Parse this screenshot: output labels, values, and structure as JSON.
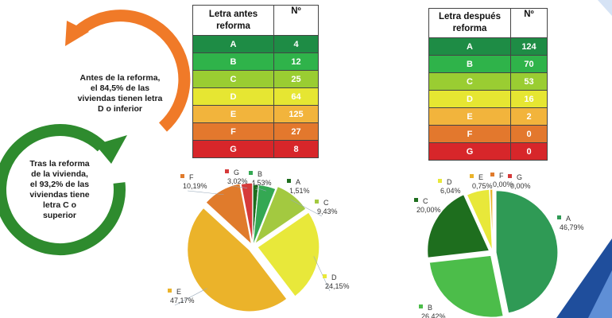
{
  "colors": {
    "A": "#1e8c45",
    "B": "#2fb34a",
    "C": "#9acd32",
    "D": "#e6e632",
    "E": "#f2b43c",
    "F": "#e3782d",
    "G": "#d7262a",
    "pieA": "#1e6e1e",
    "pieB": "#34a853",
    "pieC": "#a3c940",
    "pieD": "#e8e83a",
    "pieE": "#ebb32a",
    "pieF": "#e07b2c",
    "pieG": "#d63a3a",
    "arrowOrange": "#f07a28",
    "arrowGreen": "#2e8b2e",
    "cornerBlue": "#1f4e9c"
  },
  "callouts": {
    "before_lines": [
      "Antes de la reforma,",
      "el 84,5% de las",
      "viviendas tienen letra",
      "D o inferior"
    ],
    "after_lines": [
      "Tras la reforma",
      "de la vivienda,",
      "el 93,2% de las",
      "viviendas tiene",
      "letra C o",
      "superior"
    ]
  },
  "tables": {
    "before": {
      "header_letter_lines": [
        "Letra antes",
        "reforma"
      ],
      "header_count": "Nº",
      "rows": [
        {
          "letter": "A",
          "count": "4"
        },
        {
          "letter": "B",
          "count": "12"
        },
        {
          "letter": "C",
          "count": "25"
        },
        {
          "letter": "D",
          "count": "64"
        },
        {
          "letter": "E",
          "count": "125"
        },
        {
          "letter": "F",
          "count": "27"
        },
        {
          "letter": "G",
          "count": "8"
        }
      ]
    },
    "after": {
      "header_letter_lines": [
        "Letra después",
        "reforma"
      ],
      "header_count": "Nº",
      "rows": [
        {
          "letter": "A",
          "count": "124"
        },
        {
          "letter": "B",
          "count": "70"
        },
        {
          "letter": "C",
          "count": "53"
        },
        {
          "letter": "D",
          "count": "16"
        },
        {
          "letter": "E",
          "count": "2"
        },
        {
          "letter": "F",
          "count": "0"
        },
        {
          "letter": "G",
          "count": "0"
        }
      ]
    }
  },
  "chart_data": [
    {
      "type": "pie",
      "title": "",
      "labels": [
        "A",
        "B",
        "C",
        "D",
        "E",
        "F",
        "G"
      ],
      "values": [
        1.51,
        4.53,
        9.43,
        24.15,
        47.17,
        10.19,
        3.02
      ],
      "value_labels": [
        "1,51%",
        "4,53%",
        "9,43%",
        "24,15%",
        "47,17%",
        "10,19%",
        "3,02%"
      ],
      "colors": [
        "#1e6e1e",
        "#34a853",
        "#a3c940",
        "#e8e83a",
        "#ebb32a",
        "#e07b2c",
        "#d63a3a"
      ],
      "legend": "per-slice labels"
    },
    {
      "type": "pie",
      "title": "",
      "labels": [
        "A",
        "B",
        "C",
        "D",
        "E",
        "F",
        "G"
      ],
      "values": [
        46.79,
        26.42,
        20.0,
        6.04,
        0.75,
        0.0,
        0.0
      ],
      "value_labels": [
        "46,79%",
        "26,42%",
        "20,00%",
        "6,04%",
        "0,75%",
        "0,00%",
        "0,00%"
      ],
      "colors": [
        "#2f9a55",
        "#4cbd4a",
        "#1e6e1e",
        "#e8e83a",
        "#ebb32a",
        "#e07b2c",
        "#d63a3a"
      ],
      "legend": "per-slice labels"
    }
  ]
}
